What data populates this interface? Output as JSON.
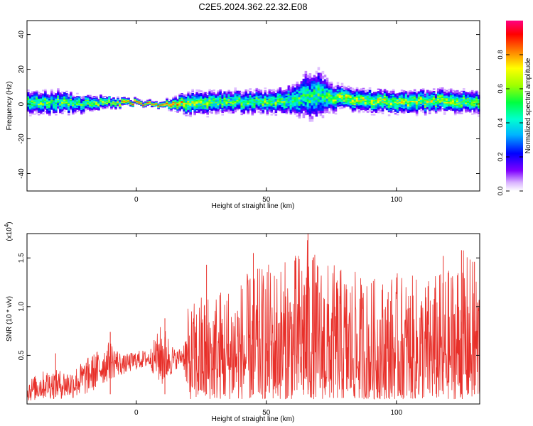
{
  "title": "C2E5.2024.362.22.32.E08",
  "colors": {
    "snr_line": "#e8302a",
    "background": "#ffffff",
    "axes": "#000000",
    "colormap": [
      "#ffffff",
      "#d9b3ff",
      "#7f00ff",
      "#0000ff",
      "#00b4ff",
      "#00ffd0",
      "#00ff40",
      "#a0ff00",
      "#ffff00",
      "#ff8000",
      "#ff0000",
      "#ff0080"
    ]
  },
  "chart_data": [
    {
      "type": "heatmap",
      "title": "C2E5.2024.362.22.32.E08",
      "xlabel": "Height of straight line (km)",
      "ylabel": "Frequency (Hz)",
      "xlim": [
        -42,
        132
      ],
      "ylim": [
        -50,
        48
      ],
      "xticks": [
        0,
        50,
        100
      ],
      "xtick_labels": [
        "0",
        "50",
        "100"
      ],
      "yticks": [
        -40,
        -20,
        0,
        20,
        40
      ],
      "ytick_labels": [
        "-40",
        "-20",
        "0",
        "20",
        "40"
      ],
      "colorbar": {
        "label": "Normalized spectral amplitude",
        "range": [
          0.0,
          1.0
        ],
        "ticks": [
          0.0,
          0.2,
          0.4,
          0.6,
          0.8
        ],
        "tick_labels": [
          "0.0",
          "0.2",
          "0.4",
          "0.6",
          "0.8"
        ]
      },
      "ridge": {
        "x": [
          -42,
          -30,
          -20,
          -10,
          0,
          10,
          20,
          30,
          40,
          50,
          60,
          65,
          70,
          75,
          80,
          90,
          100,
          110,
          120,
          132
        ],
        "center_freq": [
          1,
          1,
          0,
          1,
          1,
          0,
          0,
          1,
          1,
          1,
          2,
          4,
          5,
          3,
          3,
          2,
          1,
          1,
          2,
          1
        ],
        "half_width": [
          4,
          4,
          3,
          2,
          1,
          1,
          4,
          4,
          4,
          4,
          5,
          8,
          9,
          5,
          4,
          4,
          4,
          4,
          4,
          4
        ],
        "peak_amplitude": [
          0.6,
          0.6,
          0.6,
          0.7,
          0.95,
          0.95,
          0.7,
          0.6,
          0.6,
          0.6,
          0.6,
          0.55,
          0.55,
          0.6,
          0.7,
          0.7,
          0.7,
          0.7,
          0.7,
          0.6
        ]
      },
      "grid": false
    },
    {
      "type": "line",
      "xlabel": "Height of straight line (km)",
      "ylabel": "SNR (10 * v/v)",
      "y_multiplier": "(x10^4)",
      "xlim": [
        -42,
        132
      ],
      "ylim": [
        0,
        1.75
      ],
      "xticks": [
        0,
        50,
        100
      ],
      "xtick_labels": [
        "0",
        "50",
        "100"
      ],
      "yticks": [
        0.5,
        1.0,
        1.5
      ],
      "ytick_labels": [
        "0.5",
        "1.0",
        "1.5"
      ],
      "envelope": {
        "x": [
          -42,
          -35,
          -30,
          -25,
          -20,
          -15,
          -10,
          -5,
          0,
          5,
          10,
          15,
          18,
          20,
          25,
          30,
          40,
          50,
          60,
          65,
          70,
          80,
          90,
          100,
          110,
          120,
          125,
          132
        ],
        "low": [
          0.02,
          0.05,
          0.05,
          0.05,
          0.08,
          0.15,
          0.25,
          0.3,
          0.35,
          0.38,
          0.15,
          0.35,
          0.4,
          0.05,
          0.05,
          0.05,
          0.05,
          0.05,
          0.05,
          0.05,
          0.05,
          0.05,
          0.05,
          0.05,
          0.05,
          0.05,
          0.05,
          0.05
        ],
        "high": [
          0.25,
          0.35,
          0.35,
          0.35,
          0.45,
          0.55,
          0.65,
          0.5,
          0.55,
          0.55,
          0.85,
          0.55,
          0.6,
          1.0,
          1.15,
          1.2,
          1.3,
          1.45,
          1.5,
          1.75,
          1.5,
          1.4,
          1.3,
          1.35,
          1.3,
          1.4,
          1.6,
          1.45
        ]
      },
      "spikes": [
        {
          "x": -31,
          "y": 0.52
        },
        {
          "x": -10,
          "y": 0.74
        },
        {
          "x": 11,
          "y": 0.88
        },
        {
          "x": 27,
          "y": 1.43
        },
        {
          "x": 45,
          "y": 1.55
        },
        {
          "x": 66,
          "y": 1.75
        },
        {
          "x": 68,
          "y": 1.5
        },
        {
          "x": 118,
          "y": 1.52
        },
        {
          "x": 125,
          "y": 1.58
        },
        {
          "x": 130,
          "y": 1.46
        }
      ],
      "grid": false
    }
  ]
}
